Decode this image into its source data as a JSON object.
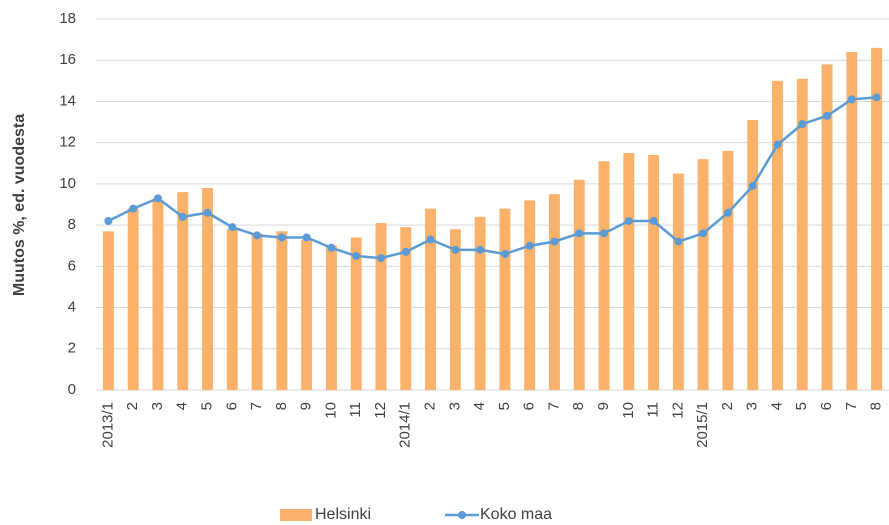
{
  "chart_data": {
    "type": "bar_line",
    "y_label": "Muutos %, ed. vuodesta",
    "categories": [
      "2013/1",
      "2",
      "3",
      "4",
      "5",
      "6",
      "7",
      "8",
      "9",
      "10",
      "11",
      "12",
      "2014/1",
      "2",
      "3",
      "4",
      "5",
      "6",
      "7",
      "8",
      "9",
      "10",
      "11",
      "12",
      "2015/1",
      "2",
      "3",
      "4",
      "5",
      "6",
      "7",
      "8"
    ],
    "series": [
      {
        "name": "Helsinki",
        "type": "bar",
        "color": "#fab26a",
        "values": [
          7.7,
          8.8,
          9.2,
          9.6,
          9.8,
          7.8,
          7.6,
          7.7,
          7.3,
          7.0,
          7.4,
          8.1,
          7.9,
          8.8,
          7.8,
          8.4,
          8.8,
          9.2,
          9.5,
          10.2,
          11.1,
          11.5,
          11.4,
          10.5,
          11.2,
          11.6,
          13.1,
          15.0,
          15.1,
          15.8,
          16.4,
          16.6
        ]
      },
      {
        "name": "Koko maa",
        "type": "line",
        "color": "#5b9bd5",
        "values": [
          8.2,
          8.8,
          9.3,
          8.4,
          8.6,
          7.9,
          7.5,
          7.4,
          7.4,
          6.9,
          6.5,
          6.4,
          6.7,
          7.3,
          6.8,
          6.8,
          6.6,
          7.0,
          7.2,
          7.6,
          7.6,
          8.2,
          8.2,
          7.2,
          7.6,
          8.6,
          9.9,
          11.9,
          12.9,
          13.3,
          14.1,
          14.2
        ]
      }
    ],
    "ylim": [
      0,
      18
    ],
    "yticks": [
      0,
      2,
      4,
      6,
      8,
      10,
      12,
      14,
      16,
      18
    ],
    "grid": true,
    "legend": "bottom"
  }
}
